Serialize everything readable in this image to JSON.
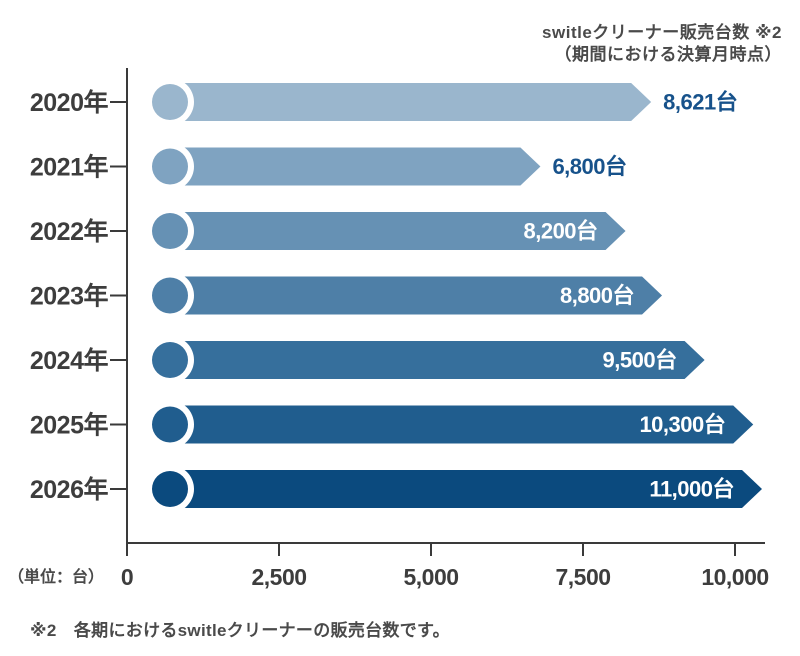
{
  "header": {
    "title_line1": "switleクリーナー販売台数 ※2",
    "title_line2": "（期間における決算月時点）"
  },
  "chart_data": {
    "type": "bar",
    "orientation": "horizontal",
    "title": "switleクリーナー販売台数 ※2（期間における決算月時点）",
    "categories": [
      "2020年",
      "2021年",
      "2022年",
      "2023年",
      "2024年",
      "2025年",
      "2026年"
    ],
    "values": [
      8621,
      6800,
      8200,
      8800,
      9500,
      10300,
      11000
    ],
    "value_labels": [
      "8,621台",
      "6,800台",
      "8,200台",
      "8,800台",
      "9,500台",
      "10,300台",
      "11,000台"
    ],
    "value_label_placement": [
      "outside",
      "outside",
      "inside",
      "inside",
      "inside",
      "inside",
      "inside"
    ],
    "bar_colors": [
      "#9ab6cd",
      "#7fa3c1",
      "#6691b4",
      "#4e7fa7",
      "#366f9c",
      "#205d8e",
      "#0b4a7e"
    ],
    "x_ticks": [
      "0",
      "2,500",
      "5,000",
      "7,500",
      "10,000"
    ],
    "x_tick_values": [
      0,
      2500,
      5000,
      7500,
      10000
    ],
    "xlim": [
      0,
      10000
    ],
    "grid": false,
    "legend": false,
    "unit_label": "（単位：台）",
    "colors": {
      "value_text_outside": "#17528b",
      "value_text_inside": "#ffffff",
      "axis": "#3a3a3a",
      "category_text": "#3d3d3d"
    }
  },
  "footnote": {
    "text": "※2　各期におけるswitleクリーナーの販売台数です。"
  }
}
